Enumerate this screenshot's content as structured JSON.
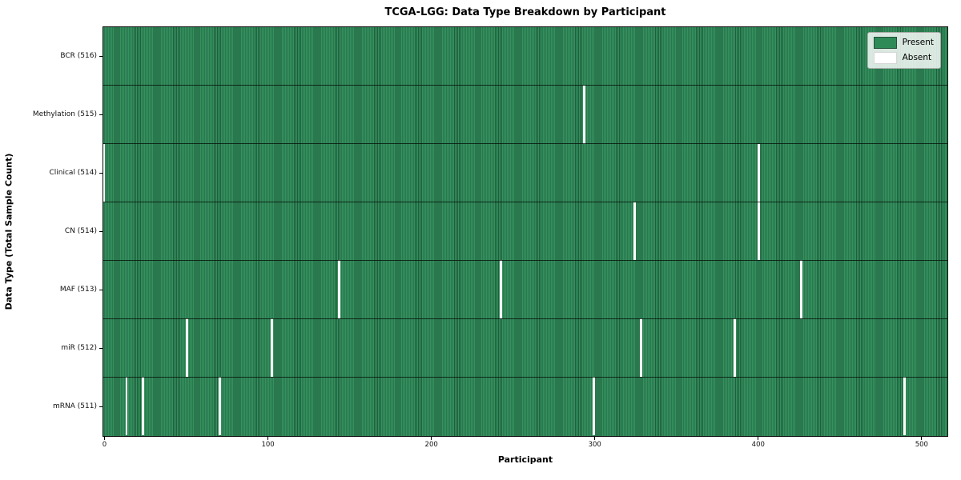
{
  "title": "TCGA-LGG: Data Type Breakdown by Participant",
  "axes": {
    "xlabel": "Participant",
    "ylabel": "Data Type (Total Sample Count)"
  },
  "legend": {
    "present": "Present",
    "absent": "Absent"
  },
  "colors": {
    "present_fill": "#2e8b57",
    "present_edge": "#1f5e3c",
    "absent_fill": "#ffffff",
    "plot_border": "#0a0a0a",
    "legend_background": "#eef1ee"
  },
  "chart_data": {
    "type": "heatmap",
    "title": "TCGA-LGG: Data Type Breakdown by Participant",
    "xlabel": "Participant",
    "ylabel": "Data Type (Total Sample Count)",
    "legend_entries": [
      "Present",
      "Absent"
    ],
    "legend_position": "upper right",
    "grid": false,
    "n_participants": 516,
    "x_range": [
      -0.5,
      515.5
    ],
    "x_ticks": [
      0,
      100,
      200,
      300,
      400,
      500
    ],
    "rows": [
      {
        "label": "BCR (516)",
        "total": 516,
        "absent_participants": []
      },
      {
        "label": "Methylation (515)",
        "total": 515,
        "absent_participants": [
          294
        ]
      },
      {
        "label": "Clinical (514)",
        "total": 514,
        "absent_participants": [
          0,
          401
        ]
      },
      {
        "label": "CN (514)",
        "total": 514,
        "absent_participants": [
          325,
          401
        ]
      },
      {
        "label": "MAF (513)",
        "total": 513,
        "absent_participants": [
          144,
          243,
          427
        ]
      },
      {
        "label": "miR (512)",
        "total": 512,
        "absent_participants": [
          51,
          103,
          329,
          386
        ]
      },
      {
        "label": "mRNA (511)",
        "total": 511,
        "absent_participants": [
          14,
          24,
          71,
          300,
          490
        ]
      }
    ]
  }
}
